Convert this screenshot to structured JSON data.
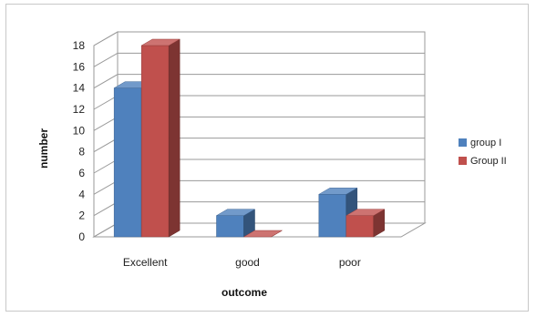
{
  "chart_data": {
    "type": "bar",
    "style": "3d-clustered-column",
    "categories": [
      "Excellent",
      "good",
      "poor"
    ],
    "series": [
      {
        "name": "group I",
        "values": [
          14,
          2,
          4
        ],
        "color": "#4f81bd"
      },
      {
        "name": "Group II",
        "values": [
          18,
          0,
          2
        ],
        "color": "#c0504d"
      }
    ],
    "xlabel": "outcome",
    "ylabel": "number",
    "ylim": [
      0,
      18
    ],
    "yticks": [
      "0",
      "2",
      "4",
      "6",
      "8",
      "10",
      "12",
      "14",
      "16",
      "18"
    ],
    "grid": true,
    "legend": "right"
  }
}
